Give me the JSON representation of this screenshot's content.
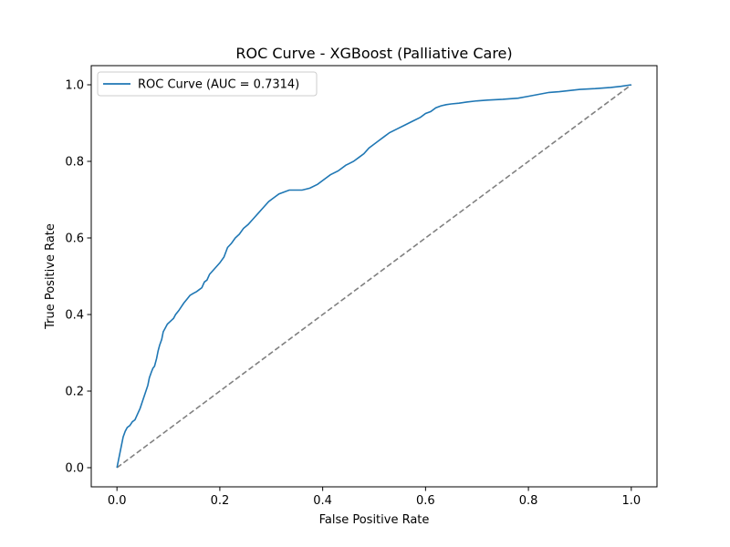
{
  "chart_data": {
    "type": "line",
    "title": "ROC Curve - XGBoost (Palliative Care)",
    "xlabel": "False Positive Rate",
    "ylabel": "True Positive Rate",
    "xlim": [
      -0.05,
      1.05
    ],
    "ylim": [
      -0.05,
      1.05
    ],
    "xticks": [
      0.0,
      0.2,
      0.4,
      0.6,
      0.8,
      1.0
    ],
    "xtick_labels": [
      "0.0",
      "0.2",
      "0.4",
      "0.6",
      "0.8",
      "1.0"
    ],
    "yticks": [
      0.0,
      0.2,
      0.4,
      0.6,
      0.8,
      1.0
    ],
    "ytick_labels": [
      "0.0",
      "0.2",
      "0.4",
      "0.6",
      "0.8",
      "1.0"
    ],
    "grid": false,
    "legend_position": "upper left",
    "series": [
      {
        "name": "ROC Curve (AUC = 0.7314)",
        "color": "#1f77b4",
        "style": "solid",
        "x": [
          0.0,
          0.003,
          0.006,
          0.009,
          0.012,
          0.016,
          0.02,
          0.025,
          0.03,
          0.035,
          0.04,
          0.045,
          0.05,
          0.055,
          0.06,
          0.063,
          0.067,
          0.07,
          0.073,
          0.077,
          0.08,
          0.083,
          0.087,
          0.09,
          0.094,
          0.098,
          0.102,
          0.106,
          0.11,
          0.114,
          0.12,
          0.125,
          0.13,
          0.136,
          0.142,
          0.148,
          0.155,
          0.16,
          0.165,
          0.17,
          0.175,
          0.18,
          0.19,
          0.2,
          0.208,
          0.215,
          0.222,
          0.23,
          0.238,
          0.246,
          0.255,
          0.265,
          0.275,
          0.285,
          0.295,
          0.305,
          0.315,
          0.325,
          0.335,
          0.345,
          0.36,
          0.375,
          0.39,
          0.405,
          0.415,
          0.43,
          0.445,
          0.46,
          0.47,
          0.48,
          0.49,
          0.5,
          0.51,
          0.52,
          0.53,
          0.545,
          0.56,
          0.575,
          0.59,
          0.6,
          0.61,
          0.62,
          0.63,
          0.64,
          0.65,
          0.665,
          0.68,
          0.7,
          0.72,
          0.75,
          0.78,
          0.8,
          0.82,
          0.84,
          0.86,
          0.88,
          0.9,
          0.93,
          0.96,
          0.98,
          1.0
        ],
        "y": [
          0.0,
          0.02,
          0.04,
          0.06,
          0.08,
          0.095,
          0.105,
          0.11,
          0.12,
          0.125,
          0.14,
          0.155,
          0.175,
          0.195,
          0.215,
          0.235,
          0.25,
          0.26,
          0.265,
          0.285,
          0.305,
          0.32,
          0.335,
          0.355,
          0.365,
          0.375,
          0.38,
          0.385,
          0.39,
          0.4,
          0.41,
          0.42,
          0.43,
          0.44,
          0.45,
          0.455,
          0.46,
          0.465,
          0.47,
          0.485,
          0.49,
          0.505,
          0.52,
          0.535,
          0.55,
          0.575,
          0.585,
          0.6,
          0.61,
          0.625,
          0.635,
          0.65,
          0.665,
          0.68,
          0.695,
          0.705,
          0.715,
          0.72,
          0.725,
          0.725,
          0.725,
          0.73,
          0.74,
          0.755,
          0.765,
          0.775,
          0.79,
          0.8,
          0.81,
          0.82,
          0.835,
          0.845,
          0.855,
          0.865,
          0.875,
          0.885,
          0.895,
          0.905,
          0.915,
          0.925,
          0.93,
          0.94,
          0.945,
          0.948,
          0.95,
          0.952,
          0.955,
          0.958,
          0.96,
          0.962,
          0.965,
          0.97,
          0.975,
          0.98,
          0.982,
          0.985,
          0.988,
          0.99,
          0.993,
          0.996,
          1.0
        ]
      },
      {
        "color": "#808080",
        "style": "dashed",
        "x": [
          0.0,
          1.0
        ],
        "y": [
          0.0,
          1.0
        ]
      }
    ]
  }
}
